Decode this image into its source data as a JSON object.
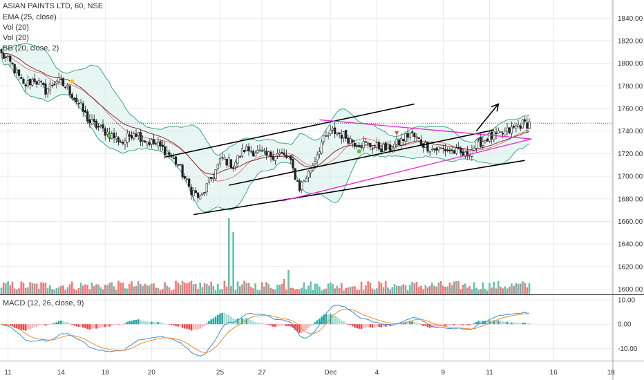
{
  "header": {
    "symbol": "ASIAN PAINTS LTD, 60, NSE",
    "studies": [
      "EMA (25, close)",
      "Vol (20)",
      "Vol (20)",
      "BB (20, close, 2)"
    ]
  },
  "macd_panel": {
    "label": "MACD (12, 26, close, 9)"
  },
  "colors": {
    "up": "#53b9a6",
    "down": "#ee6b6b",
    "ema": "#7a3030",
    "bb": "#3aa28d",
    "bb_fill": "#d8f0eb",
    "trendline": "#000000",
    "triangle": "#e62ed6",
    "macd_line": "#2f8fe0",
    "signal_line": "#f08a2a",
    "grid": "#e7e9ee"
  },
  "chart_data": [
    {
      "type": "candlestick",
      "panel": "price",
      "x_tick_labels": [
        "11",
        "14",
        "18",
        "20",
        "25",
        "27",
        "Dec",
        "4",
        "9",
        "11",
        "16",
        "18"
      ],
      "y_ticks": [
        1600,
        1620,
        1640,
        1660,
        1680,
        1700,
        1720,
        1740,
        1760,
        1780,
        1800,
        1820,
        1840
      ],
      "y_tick_labels": [
        "1600.00",
        "1620.00",
        "1640.00",
        "1660.00",
        "1680.00",
        "1700.00",
        "1720.00",
        "1740.00",
        "1760.00",
        "1780.00",
        "1800.00",
        "1820.00",
        "1840.00"
      ],
      "ylim": [
        1596,
        1850
      ],
      "last_price_line": 1747,
      "close_path": [
        [
          0,
          1808
        ],
        [
          5,
          1798
        ],
        [
          10,
          1780
        ],
        [
          15,
          1786
        ],
        [
          20,
          1776
        ],
        [
          25,
          1785
        ],
        [
          30,
          1778
        ],
        [
          35,
          1764
        ],
        [
          40,
          1748
        ],
        [
          45,
          1742
        ],
        [
          50,
          1736
        ],
        [
          55,
          1730
        ],
        [
          60,
          1740
        ],
        [
          65,
          1732
        ],
        [
          70,
          1728
        ],
        [
          75,
          1722
        ],
        [
          80,
          1710
        ],
        [
          85,
          1690
        ],
        [
          90,
          1680
        ],
        [
          95,
          1698
        ],
        [
          100,
          1716
        ],
        [
          105,
          1710
        ],
        [
          110,
          1724
        ],
        [
          115,
          1722
        ],
        [
          120,
          1718
        ],
        [
          125,
          1720
        ],
        [
          130,
          1716
        ],
        [
          135,
          1690
        ],
        [
          140,
          1706
        ],
        [
          145,
          1730
        ],
        [
          150,
          1740
        ],
        [
          155,
          1736
        ],
        [
          160,
          1730
        ],
        [
          165,
          1728
        ],
        [
          170,
          1726
        ],
        [
          175,
          1724
        ],
        [
          180,
          1730
        ],
        [
          185,
          1738
        ],
        [
          190,
          1730
        ],
        [
          195,
          1724
        ],
        [
          200,
          1724
        ],
        [
          205,
          1722
        ],
        [
          210,
          1718
        ],
        [
          215,
          1728
        ],
        [
          220,
          1734
        ],
        [
          225,
          1736
        ],
        [
          230,
          1740
        ],
        [
          235,
          1746
        ],
        [
          239,
          1747
        ]
      ],
      "volume": {
        "y_tick_labels": [
          "1600.00"
        ],
        "spikes": [
          [
            103,
            1.0
          ],
          [
            105,
            0.82
          ],
          [
            128,
            0.2
          ],
          [
            130,
            0.32
          ],
          [
            92,
            0.15
          ],
          [
            50,
            0.16
          ],
          [
            22,
            0.12
          ]
        ]
      },
      "bollinger": {
        "period": 20,
        "stdev": 2
      },
      "ema": {
        "period": 25
      },
      "markers": [
        {
          "kind": "yellow-dot",
          "bar": 32,
          "price": 1784
        },
        {
          "kind": "green-dot",
          "bar": 49,
          "price": 1736
        },
        {
          "kind": "green-dot",
          "bar": 162,
          "price": 1722
        },
        {
          "kind": "red-triangle",
          "bar": 179,
          "price": 1738
        }
      ],
      "trendlines": [
        {
          "style": "black",
          "from": [
            74,
            1717
          ],
          "to": [
            187,
            1764
          ]
        },
        {
          "style": "black",
          "from": [
            103,
            1692
          ],
          "to": [
            223,
            1741
          ]
        },
        {
          "style": "black",
          "from": [
            87,
            1666
          ],
          "to": [
            237,
            1714
          ]
        },
        {
          "style": "black-arrow",
          "from": [
            215,
            1740
          ],
          "to": [
            225,
            1764
          ]
        },
        {
          "style": "magenta",
          "from": [
            144,
            1750
          ],
          "to": [
            240,
            1733
          ]
        },
        {
          "style": "magenta",
          "from": [
            127,
            1678
          ],
          "to": [
            240,
            1733
          ]
        }
      ]
    },
    {
      "type": "bar+line",
      "panel": "macd",
      "title": "MACD (12, 26, close, 9)",
      "y_ticks": [
        10,
        0,
        -10
      ],
      "y_tick_labels": [
        "10.00",
        "0.00",
        "-10.00"
      ],
      "ylim": [
        -15,
        12
      ]
    }
  ]
}
